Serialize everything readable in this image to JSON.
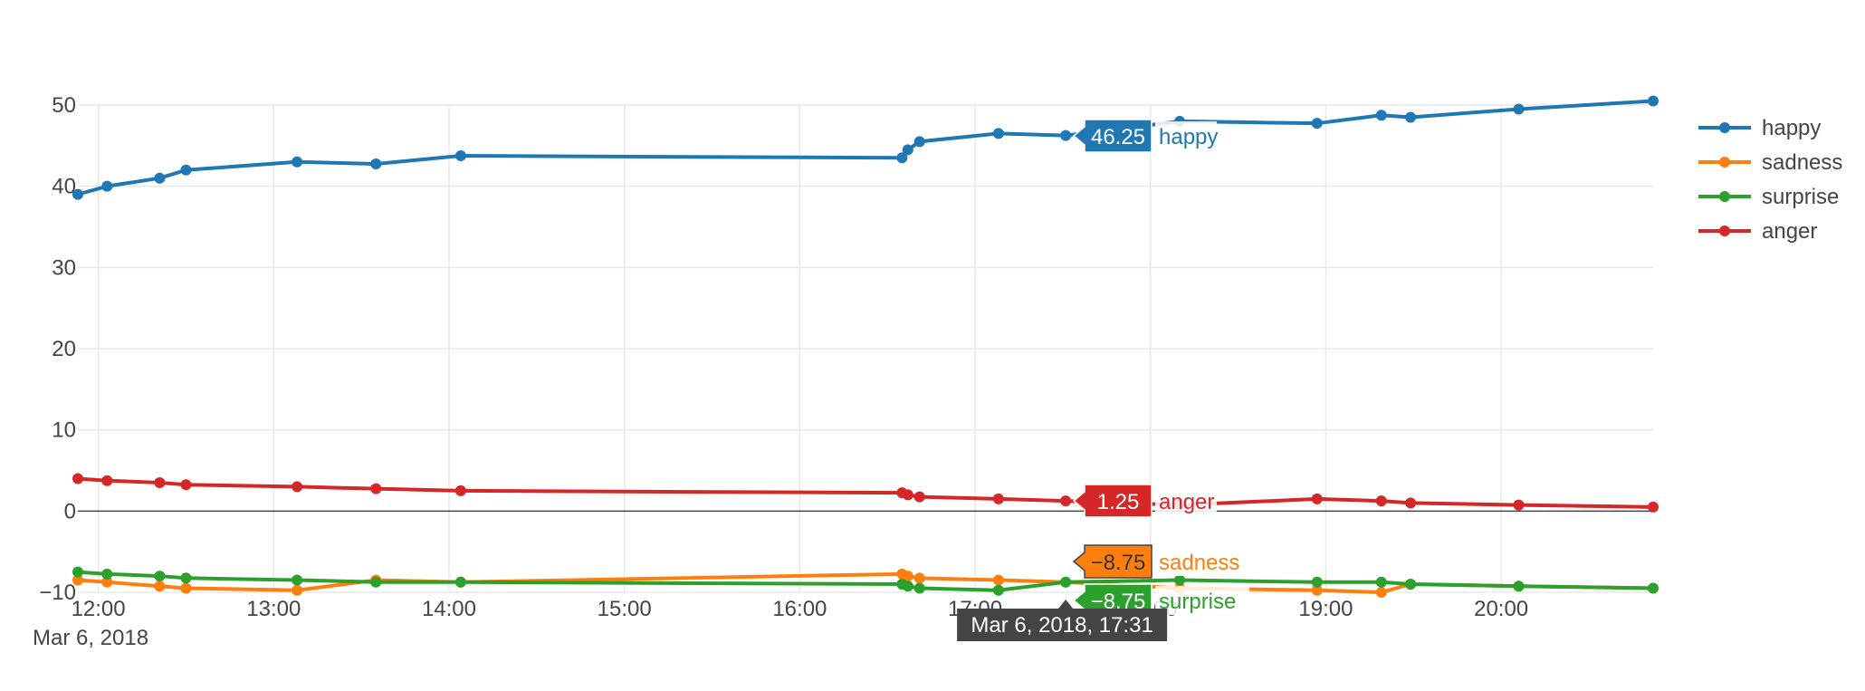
{
  "chart_data": {
    "type": "line",
    "x_axis": {
      "ticks": [
        "12:00",
        "13:00",
        "14:00",
        "15:00",
        "16:00",
        "17:00",
        "18:00",
        "19:00",
        "20:00"
      ],
      "date_label": "Mar 6, 2018",
      "range": [
        "2018-03-06 11:53",
        "2018-03-06 20:52"
      ]
    },
    "y_axis": {
      "ticks": [
        -10,
        0,
        10,
        20,
        30,
        40,
        50
      ],
      "range": [
        -10,
        50
      ]
    },
    "grid": true,
    "legend_position": "right",
    "series": [
      {
        "name": "happy",
        "color": "#1f77b4",
        "points": [
          [
            "11:53",
            39.0
          ],
          [
            "12:03",
            40.0
          ],
          [
            "12:21",
            41.0
          ],
          [
            "12:30",
            42.0
          ],
          [
            "13:08",
            43.0
          ],
          [
            "13:35",
            42.75
          ],
          [
            "14:04",
            43.75
          ],
          [
            "16:35",
            43.5
          ],
          [
            "16:37",
            44.5
          ],
          [
            "16:41",
            45.5
          ],
          [
            "17:08",
            46.5
          ],
          [
            "17:31",
            46.25
          ],
          [
            "18:10",
            48.0
          ],
          [
            "18:57",
            47.75
          ],
          [
            "19:19",
            48.75
          ],
          [
            "19:29",
            48.5
          ],
          [
            "20:06",
            49.5
          ],
          [
            "20:52",
            50.5
          ]
        ]
      },
      {
        "name": "sadness",
        "color": "#ff7f0e",
        "points": [
          [
            "11:53",
            -8.5
          ],
          [
            "12:03",
            -8.75
          ],
          [
            "12:21",
            -9.25
          ],
          [
            "12:30",
            -9.5
          ],
          [
            "13:08",
            -9.75
          ],
          [
            "13:35",
            -8.5
          ],
          [
            "14:04",
            -8.75
          ],
          [
            "16:35",
            -7.75
          ],
          [
            "16:37",
            -8.0
          ],
          [
            "16:41",
            -8.25
          ],
          [
            "17:08",
            -8.5
          ],
          [
            "17:31",
            -8.75
          ],
          [
            "18:10",
            -9.5
          ],
          [
            "18:57",
            -9.75
          ],
          [
            "19:19",
            -10.0
          ],
          [
            "19:29",
            -9.0
          ],
          [
            "20:06",
            -9.25
          ],
          [
            "20:52",
            -9.5
          ]
        ]
      },
      {
        "name": "surprise",
        "color": "#2ca02c",
        "points": [
          [
            "11:53",
            -7.5
          ],
          [
            "12:03",
            -7.75
          ],
          [
            "12:21",
            -8.0
          ],
          [
            "12:30",
            -8.25
          ],
          [
            "13:08",
            -8.5
          ],
          [
            "13:35",
            -8.75
          ],
          [
            "14:04",
            -8.75
          ],
          [
            "16:35",
            -9.0
          ],
          [
            "16:37",
            -9.25
          ],
          [
            "16:41",
            -9.5
          ],
          [
            "17:08",
            -9.75
          ],
          [
            "17:31",
            -8.75
          ],
          [
            "18:10",
            -8.5
          ],
          [
            "18:57",
            -8.75
          ],
          [
            "19:19",
            -8.75
          ],
          [
            "19:29",
            -9.0
          ],
          [
            "20:06",
            -9.25
          ],
          [
            "20:52",
            -9.5
          ]
        ]
      },
      {
        "name": "anger",
        "color": "#d62728",
        "points": [
          [
            "11:53",
            4.0
          ],
          [
            "12:03",
            3.75
          ],
          [
            "12:21",
            3.5
          ],
          [
            "12:30",
            3.25
          ],
          [
            "13:08",
            3.0
          ],
          [
            "13:35",
            2.75
          ],
          [
            "14:04",
            2.5
          ],
          [
            "16:35",
            2.25
          ],
          [
            "16:37",
            2.0
          ],
          [
            "16:41",
            1.75
          ],
          [
            "17:08",
            1.5
          ],
          [
            "17:31",
            1.25
          ],
          [
            "18:10",
            0.75
          ],
          [
            "18:57",
            1.5
          ],
          [
            "19:19",
            1.25
          ],
          [
            "19:29",
            1.0
          ],
          [
            "20:06",
            0.75
          ],
          [
            "20:52",
            0.5
          ]
        ]
      }
    ],
    "hover": {
      "x_label": "Mar 6, 2018, 17:31",
      "labels": [
        {
          "series": "happy",
          "value": "46.25",
          "name": "happy"
        },
        {
          "series": "anger",
          "value": "1.25",
          "name": "anger"
        },
        {
          "series": "sadness",
          "value": "−8.75",
          "name": "sadness"
        },
        {
          "series": "surprise",
          "value": "−8.75",
          "name": "surprise"
        }
      ]
    }
  }
}
